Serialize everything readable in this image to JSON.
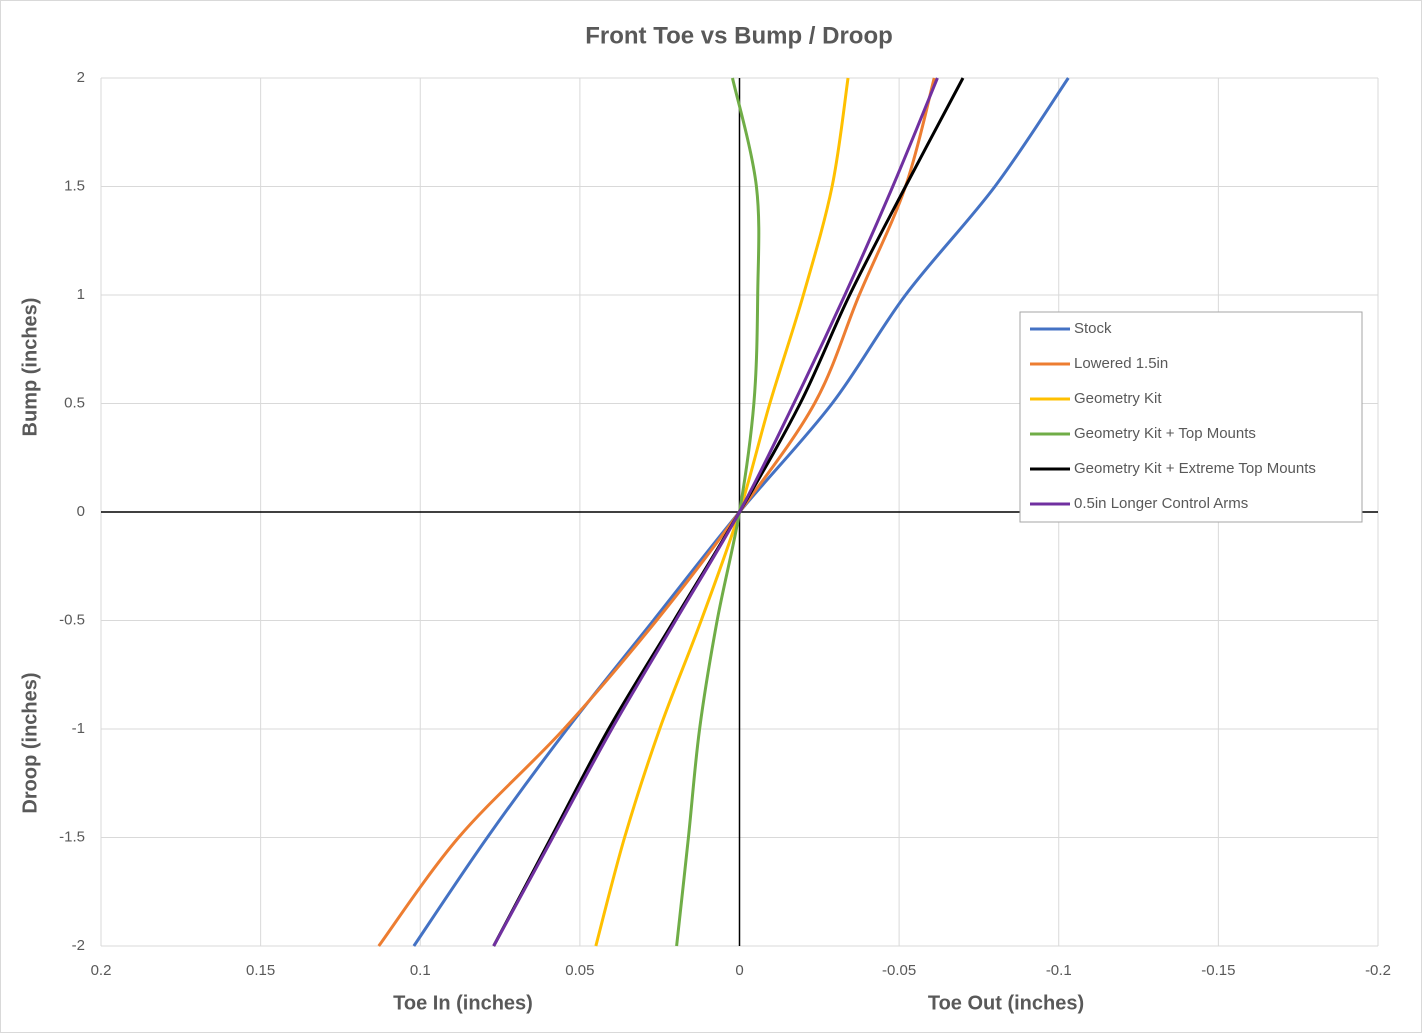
{
  "chart_data": {
    "type": "line",
    "title": "Front Toe vs Bump / Droop",
    "x_label_left": "Toe In (inches)",
    "x_label_right": "Toe Out (inches)",
    "y_label_top": "Bump (inches)",
    "y_label_bottom": "Droop (inches)",
    "xlim": [
      0.2,
      -0.2
    ],
    "xticks": [
      0.2,
      0.15,
      0.1,
      0.05,
      0,
      -0.05,
      -0.1,
      -0.15,
      -0.2
    ],
    "ylim": [
      -2,
      2
    ],
    "yticks": [
      2,
      1.5,
      1,
      0.5,
      0,
      -0.5,
      -1,
      -1.5,
      -2
    ],
    "grid": true,
    "legend": "right",
    "y": [
      -2,
      -1.5,
      -1,
      -0.5,
      0,
      0.5,
      1,
      1.5,
      2
    ],
    "series": [
      {
        "name": "Stock",
        "color": "#4472c4",
        "values": [
          0.102,
          0.079,
          0.054,
          0.027,
          0,
          -0.029,
          -0.052,
          -0.08,
          -0.103
        ]
      },
      {
        "name": "Lowered 1.5in",
        "color": "#ed7d31",
        "values": [
          0.113,
          0.088,
          0.055,
          0.026,
          0,
          -0.0235,
          -0.0375,
          -0.052,
          -0.061
        ]
      },
      {
        "name": "Geometry Kit",
        "color": "#ffc000",
        "values": [
          0.045,
          0.036,
          0.025,
          0.012,
          0,
          -0.0095,
          -0.02,
          -0.029,
          -0.034
        ]
      },
      {
        "name": "Geometry Kit + Top Mounts",
        "color": "#70ad47",
        "values": [
          0.0197,
          0.016,
          0.0125,
          0.007,
          0,
          -0.0045,
          -0.0057,
          -0.0053,
          0.0022
        ]
      },
      {
        "name": "Geometry Kit + Extreme Top Mounts",
        "color": "#000000",
        "values": [
          0.077,
          0.059,
          0.041,
          0.0205,
          0,
          -0.019,
          -0.0345,
          -0.052,
          -0.07
        ]
      },
      {
        "name": "0.5in Longer Control Arms",
        "color": "#7030a0",
        "values": [
          0.077,
          0.0585,
          0.04,
          0.02,
          0,
          -0.017,
          -0.033,
          -0.048,
          -0.062
        ]
      }
    ]
  }
}
